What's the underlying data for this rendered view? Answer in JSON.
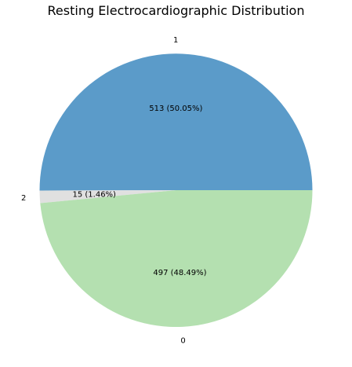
{
  "chart_data": {
    "type": "pie",
    "title": "Resting Electrocardiographic Distribution",
    "categories": [
      "1",
      "2",
      "0"
    ],
    "values": [
      513,
      15,
      497
    ],
    "slice_labels": [
      "513 (50.05%)",
      "15 (1.46%)",
      "497 (48.49%)"
    ],
    "colors": [
      "#5b9bc9",
      "#e0e0e0",
      "#b4e0b0"
    ],
    "legend": "none"
  }
}
